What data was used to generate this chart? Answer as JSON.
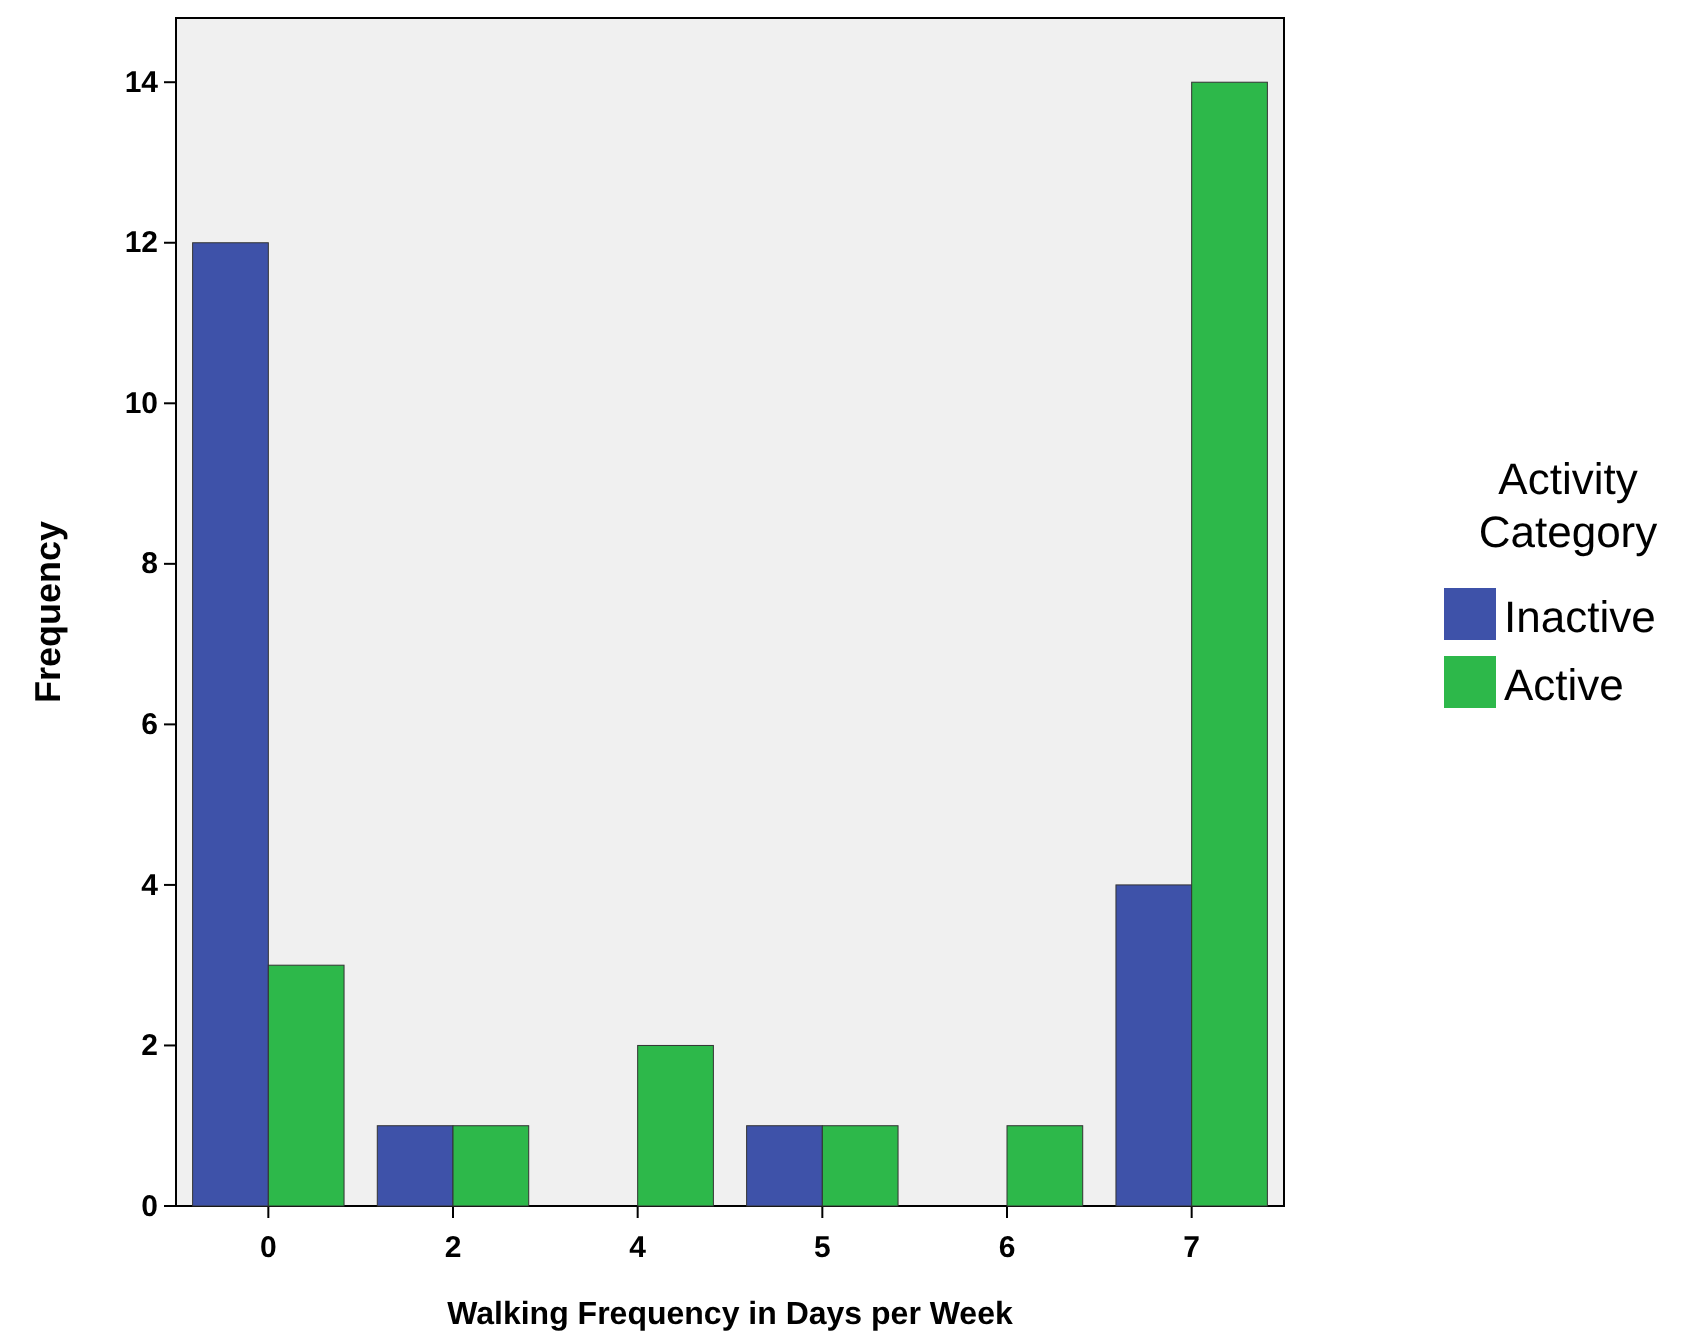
{
  "chart_data": {
    "type": "bar",
    "xlabel": "Walking Frequency in Days per Week",
    "ylabel": "Frequency",
    "legend_title": "Activity Category",
    "categories": [
      "0",
      "2",
      "4",
      "5",
      "6",
      "7"
    ],
    "series": [
      {
        "name": "Inactive",
        "color": "#3e52a9",
        "values": [
          12,
          1,
          0,
          1,
          0,
          4
        ]
      },
      {
        "name": "Active",
        "color": "#2db84a",
        "values": [
          3,
          1,
          2,
          1,
          1,
          14
        ]
      }
    ],
    "ylim": [
      0,
      14.8
    ],
    "yticks": [
      0,
      2,
      4,
      6,
      8,
      10,
      12,
      14
    ],
    "grid": false,
    "legend": "right"
  }
}
